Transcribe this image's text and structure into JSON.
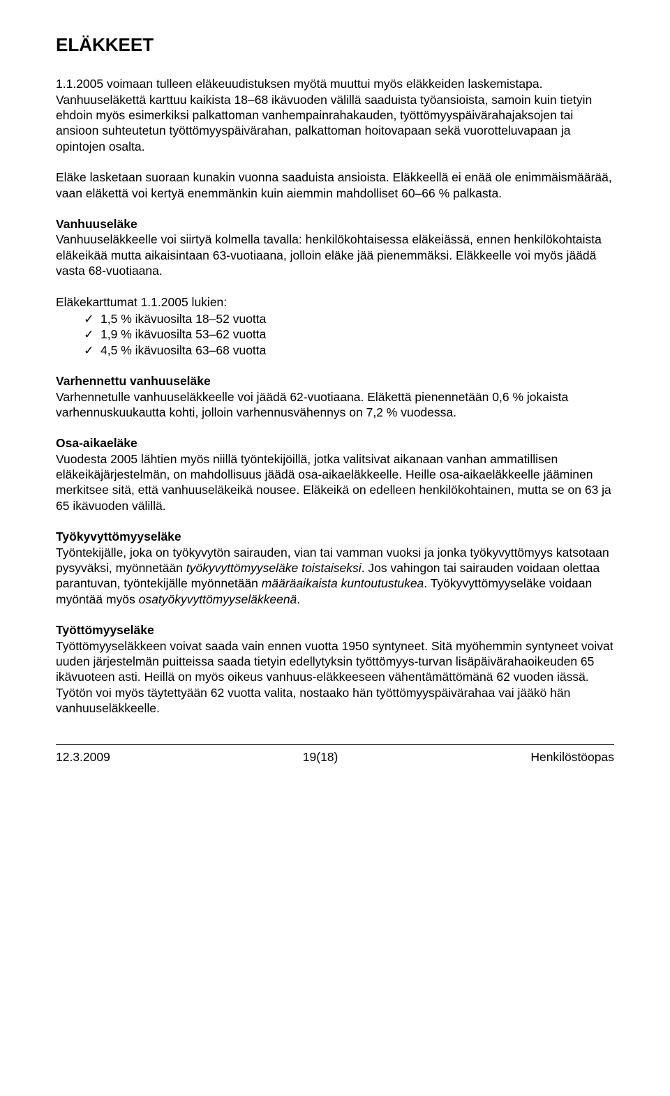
{
  "title": "ELÄKKEET",
  "intro_para": "1.1.2005 voimaan tulleen eläkeuudistuksen myötä muuttui myös eläkkeiden laskemistapa. Vanhuuseläkettä karttuu kaikista 18–68 ikävuoden välillä saaduista työansioista, samoin kuin tietyin ehdoin myös esimerkiksi palkattoman vanhempainrahakauden, työttömyyspäivärahajaksojen tai ansioon suhteutetun työttömyyspäivärahan, palkattoman hoitovapaan sekä vuorotteluvapaan ja opintojen osalta.",
  "calc_para": "Eläke lasketaan suoraan kunakin vuonna saaduista ansioista. Eläkkeellä ei enää ole enimmäismäärää, vaan eläkettä voi kertyä enemmänkin kuin aiemmin mahdolliset 60–66 % palkasta.",
  "vanhuuselake": {
    "heading": "Vanhuuseläke",
    "body": "Vanhuuseläkkeelle voi siirtyä kolmella tavalla: henkilökohtaisessa eläkeiässä, ennen henkilökohtaista eläkeikää mutta aikaisintaan 63-vuotiaana, jolloin eläke jää pienemmäksi. Eläkkeelle voi myös jäädä vasta 68-vuotiaana."
  },
  "karttumat": {
    "intro": "Eläkekarttumat 1.1.2005 lukien:",
    "items": [
      "1,5 % ikävuosilta 18–52 vuotta",
      "1,9 % ikävuosilta 53–62 vuotta",
      "4,5 % ikävuosilta 63–68 vuotta"
    ]
  },
  "varhennettu": {
    "heading": "Varhennettu vanhuuseläke",
    "body": "Varhennetulle vanhuuseläkkeelle voi jäädä 62-vuotiaana. Eläkettä pienennetään 0,6 % jokaista varhennuskuukautta kohti, jolloin varhennusvähennys on 7,2 % vuodessa."
  },
  "osaaika": {
    "heading": "Osa-aikaeläke",
    "body": "Vuodesta 2005 lähtien myös niillä työntekijöillä, jotka valitsivat aikanaan vanhan ammatillisen eläkeikäjärjestelmän, on mahdollisuus jäädä osa-aikaeläkkeelle. Heille osa-aikaeläkkeelle jääminen merkitsee sitä, että vanhuuseläkeikä nousee. Eläkeikä on edelleen henkilökohtainen, mutta se on 63 ja 65 ikävuoden välillä."
  },
  "tyokyv": {
    "heading": "Työkyvyttömyyseläke",
    "text1": "Työntekijälle, joka on työkyvytön sairauden, vian tai vamman vuoksi ja jonka työkyvyttömyys katsotaan pysyväksi, myönnetään ",
    "italic1": "työkyvyttömyyseläke toistaiseksi",
    "text2": ". Jos vahingon tai sairauden voidaan olettaa parantuvan, työntekijälle myönnetään ",
    "italic2": "määräaikaista kuntoutustukea",
    "text3": ". Työkyvyttömyyseläke voidaan myöntää myös ",
    "italic3": "osatyökyvyttömyyseläkkeenä",
    "text4": "."
  },
  "tyottomyys": {
    "heading": "Työttömyyseläke",
    "body": "Työttömyyseläkkeen voivat saada vain ennen vuotta 1950 syntyneet. Sitä myöhemmin syntyneet voivat uuden järjestelmän puitteissa saada tietyin edellytyksin työttömyys-turvan lisäpäivärahaoikeuden 65 ikävuoteen asti. Heillä on myös oikeus vanhuus-eläkkeeseen vähentämättömänä 62 vuoden iässä. Työtön voi myös täytettyään 62 vuotta valita, nostaako hän työttömyyspäivärahaa vai jääkö hän vanhuuseläkkeelle."
  },
  "footer": {
    "left": "12.3.2009",
    "center": "19(18)",
    "right": "Henkilöstöopas"
  },
  "colors": {
    "text": "#000000",
    "background": "#ffffff",
    "rule": "#000000"
  }
}
